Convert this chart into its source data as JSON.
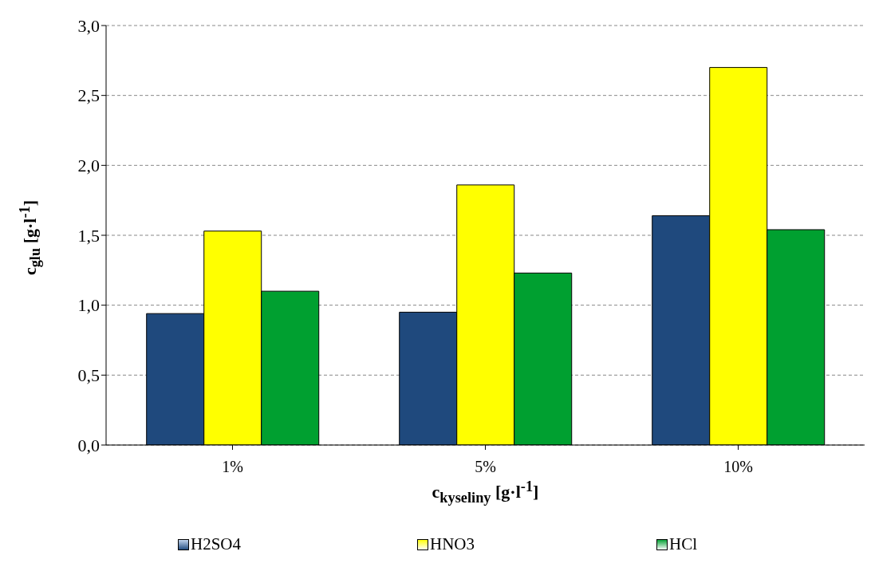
{
  "chart_data": {
    "type": "bar",
    "xlabel": "c$_{kyseliny}$ [g·l$^{-1}$]",
    "ylabel": "c$_{glu}$ [g·l$^{-1}$]",
    "categories": [
      "1%",
      "5%",
      "10%"
    ],
    "series": [
      {
        "name": "H2SO4",
        "color": "#1f497d",
        "values": [
          0.94,
          0.95,
          1.64
        ]
      },
      {
        "name": "HNO3",
        "color": "#ffff00",
        "values": [
          1.53,
          1.86,
          2.7
        ]
      },
      {
        "name": "HCl",
        "color": "#00a030",
        "values": [
          1.1,
          1.23,
          1.54
        ]
      }
    ],
    "ylim": [
      0,
      3
    ],
    "yticks": [
      {
        "value": 0,
        "label": "0,0"
      },
      {
        "value": 0.5,
        "label": "0,5"
      },
      {
        "value": 1,
        "label": "1,0"
      },
      {
        "value": 1.5,
        "label": "1,5"
      },
      {
        "value": 2,
        "label": "2,0"
      },
      {
        "value": 2.5,
        "label": "2,5"
      },
      {
        "value": 3,
        "label": "3,0"
      }
    ],
    "grid": "y",
    "legend": "bottom"
  }
}
